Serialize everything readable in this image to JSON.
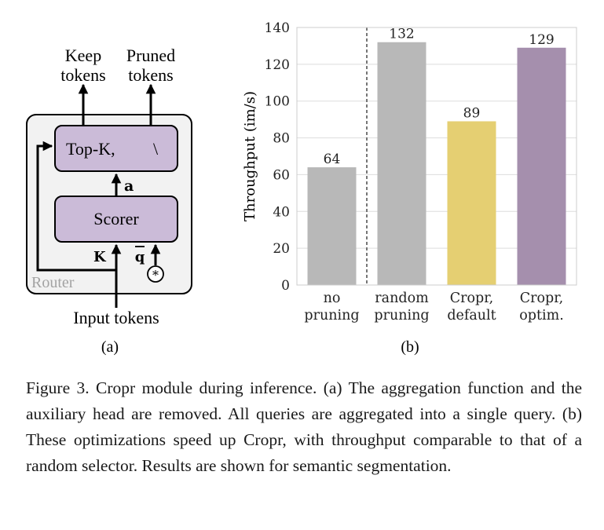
{
  "diagram": {
    "keep_label_line1": "Keep",
    "keep_label_line2": "tokens",
    "pruned_label_line1": "Pruned",
    "pruned_label_line2": "tokens",
    "topk_label": "Top-K,",
    "topk_symbol": "\\",
    "a_label": "a",
    "scorer_label": "Scorer",
    "k_label": "K",
    "q_label": "q",
    "star_label": "*",
    "router_label": "Router",
    "input_label": "Input tokens",
    "sublabel": "(a)"
  },
  "chart_sublabel": "(b)",
  "chart_data": {
    "type": "bar",
    "categories": [
      [
        "no",
        "pruning"
      ],
      [
        "random",
        "pruning"
      ],
      [
        "Cropr,",
        "default"
      ],
      [
        "Cropr,",
        "optim."
      ]
    ],
    "values": [
      64,
      132,
      89,
      129
    ],
    "data_labels": [
      "64",
      "132",
      "89",
      "129"
    ],
    "colors": [
      "#b8b8b8",
      "#b8b8b8",
      "#e5cf72",
      "#a58fad"
    ],
    "ylabel": "Throughput (im/s)",
    "ylim": [
      0,
      140
    ],
    "yticks": [
      0,
      20,
      40,
      60,
      80,
      100,
      120,
      140
    ],
    "grid": "horizontal",
    "separator_after_category": 0
  },
  "caption": "Figure 3. Cropr module during inference. (a) The aggregation function and the auxiliary head are removed. All queries are aggregated into a single query. (b) These optimizations speed up Cropr, with throughput comparable to that of a random selector. Results are shown for semantic segmentation."
}
